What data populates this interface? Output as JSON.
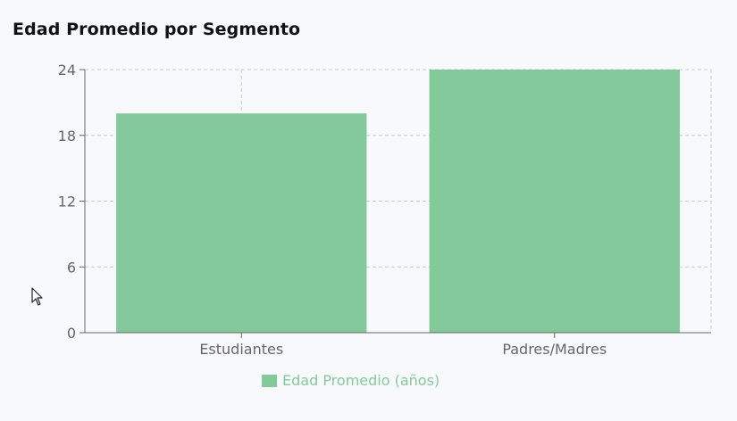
{
  "title": "Edad Promedio por Segmento",
  "colors": {
    "bar": "#84c99b",
    "axis": "#666666",
    "grid": "#cccccc",
    "legend_text": "#84c99b"
  },
  "cursor_icon": "arrow-cursor-icon",
  "chart_data": {
    "type": "bar",
    "title": "Edad Promedio por Segmento",
    "xlabel": "",
    "ylabel": "",
    "categories": [
      "Estudiantes",
      "Padres/Madres"
    ],
    "series": [
      {
        "name": "Edad Promedio (años)",
        "values": [
          20,
          24
        ]
      }
    ],
    "yticks": [
      0,
      6,
      12,
      18,
      24
    ],
    "ylim": [
      0,
      24
    ],
    "grid": true,
    "legend_position": "bottom"
  }
}
